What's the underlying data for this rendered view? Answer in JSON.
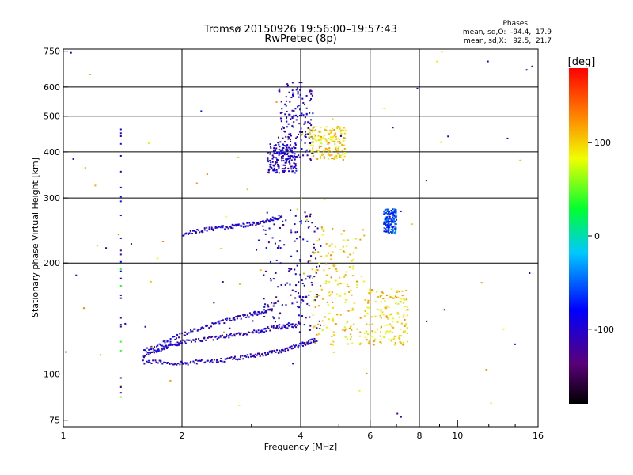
{
  "chart_data": {
    "type": "scatter",
    "title_line1": "Tromsø 20150926 19:56:00–19:57:43",
    "title_line2": "RwPretec (8p)",
    "xlabel": "Frequency [MHz]",
    "ylabel": "Stationary phase Virtual Height [km]",
    "x_scale": "log2",
    "y_scale": "log",
    "xlim": [
      1,
      16
    ],
    "ylim": [
      72,
      760
    ],
    "x_ticks": [
      {
        "v": 1,
        "label": "1"
      },
      {
        "v": 2,
        "label": "2"
      },
      {
        "v": 4,
        "label": "4"
      },
      {
        "v": 6,
        "label": "6"
      },
      {
        "v": 8,
        "label": "8"
      },
      {
        "v": 10,
        "label": "10"
      },
      {
        "v": 16,
        "label": "16"
      }
    ],
    "x_gridlines": [
      2,
      4,
      6,
      8
    ],
    "x_minor_ticks": [
      3,
      5,
      7,
      9,
      12,
      14
    ],
    "y_ticks": [
      {
        "v": 75,
        "label": "75"
      },
      {
        "v": 100,
        "label": "100"
      },
      {
        "v": 200,
        "label": "200"
      },
      {
        "v": 300,
        "label": "300"
      },
      {
        "v": 400,
        "label": "400"
      },
      {
        "v": 500,
        "label": "500"
      },
      {
        "v": 600,
        "label": "600"
      },
      {
        "v": 750,
        "label": "750"
      }
    ],
    "y_gridlines": [
      100,
      200,
      300,
      400,
      500,
      600
    ],
    "grid": true,
    "colorbar": {
      "label": "[deg]",
      "range": [
        -180,
        180
      ],
      "ticks": [
        {
          "v": 100,
          "label": "100"
        },
        {
          "v": 0,
          "label": "0"
        },
        {
          "v": -100,
          "label": "-100"
        }
      ],
      "colormap": "rainbow (black-purple-blue-cyan-green-yellow-orange-red)"
    },
    "stats": {
      "heading": "Phases",
      "line_o": "mean, sd,O:  -94.4,  17.9",
      "line_x": "mean, sd,X:   92.5,  21.7"
    },
    "traces": [
      {
        "type": "line",
        "name": "",
        "phase": -100,
        "points": [
          [
            1.6,
            108
          ],
          [
            2.0,
            107
          ],
          [
            2.5,
            109
          ],
          [
            3.0,
            112
          ],
          [
            3.5,
            115
          ],
          [
            4.0,
            120
          ],
          [
            4.4,
            124
          ]
        ]
      },
      {
        "type": "line",
        "name": "",
        "phase": -100,
        "points": [
          [
            1.6,
            112
          ],
          [
            1.8,
            118
          ],
          [
            2.0,
            122
          ],
          [
            2.5,
            126
          ],
          [
            3.0,
            130
          ],
          [
            3.5,
            134
          ],
          [
            4.0,
            136
          ]
        ]
      },
      {
        "type": "line",
        "name": "",
        "phase": -100,
        "points": [
          [
            1.6,
            115
          ],
          [
            2.0,
            128
          ],
          [
            2.5,
            138
          ],
          [
            3.0,
            145
          ],
          [
            3.4,
            150
          ]
        ]
      },
      {
        "type": "line",
        "name": "",
        "phase": -100,
        "points": [
          [
            2.0,
            240
          ],
          [
            2.4,
            248
          ],
          [
            2.8,
            252
          ],
          [
            3.2,
            258
          ],
          [
            3.6,
            268
          ]
        ]
      },
      {
        "type": "blob",
        "name": "",
        "phase": -100,
        "x": [
          3.3,
          3.9
        ],
        "y": [
          350,
          420
        ]
      },
      {
        "type": "blob",
        "name": "",
        "phase": -100,
        "x": [
          3.5,
          4.3
        ],
        "y": [
          380,
          620
        ]
      },
      {
        "type": "blob",
        "name": "",
        "phase": 100,
        "x": [
          4.2,
          5.2
        ],
        "y": [
          380,
          470
        ]
      },
      {
        "type": "blob",
        "name": "",
        "phase": -100,
        "x": [
          3.2,
          4.5
        ],
        "y": [
          130,
          280
        ]
      },
      {
        "type": "blob",
        "name": "",
        "phase": 100,
        "x": [
          4.2,
          5.8
        ],
        "y": [
          120,
          250
        ]
      },
      {
        "type": "blob",
        "name": "",
        "phase": 100,
        "x": [
          5.8,
          7.5
        ],
        "y": [
          120,
          170
        ]
      },
      {
        "type": "blob",
        "name": "",
        "phase": -60,
        "x": [
          6.5,
          7.0
        ],
        "y": [
          240,
          280
        ]
      },
      {
        "type": "vertical",
        "name": "",
        "phase": -100,
        "x": 1.4,
        "y": [
          85,
          480
        ]
      }
    ]
  }
}
